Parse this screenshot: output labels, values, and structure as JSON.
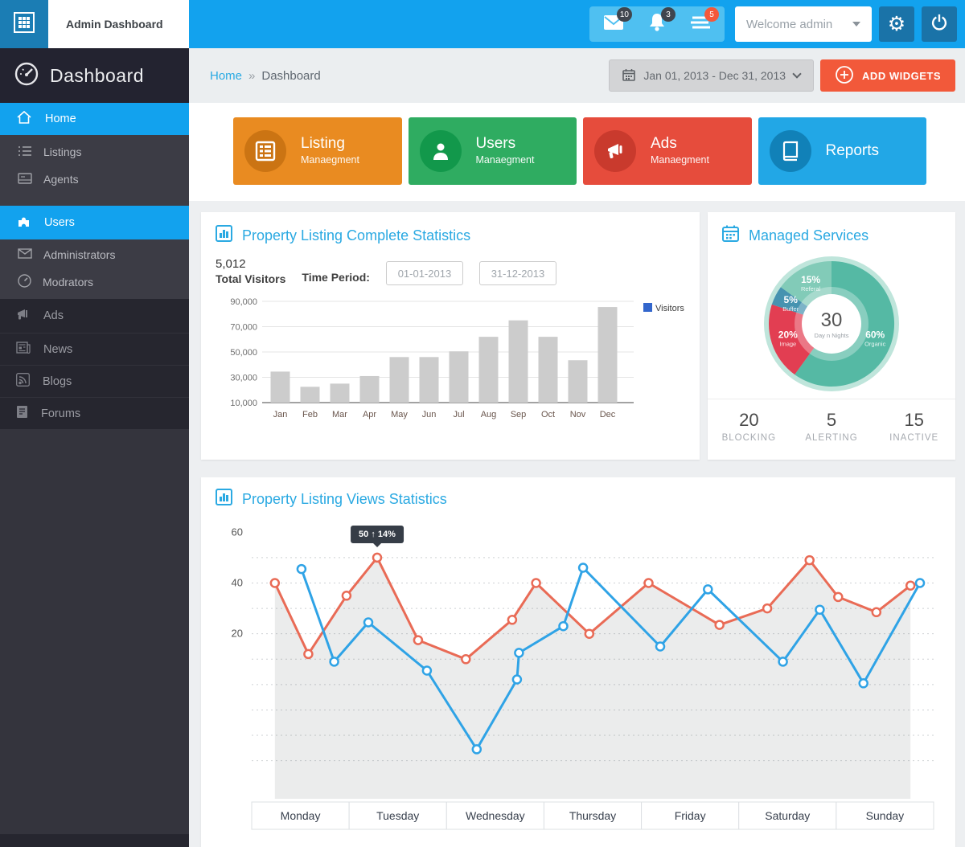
{
  "colors": {
    "accent": "#12a2ee",
    "header_light": "#4fc0f1",
    "header_button": "#1a73a8",
    "sidebar_dark": "#26262f",
    "sidebar_sub": "#3c3c45",
    "panel_title": "#2aa9e2",
    "add_widgets": "#f2593a",
    "badge_dark": "#3f454e",
    "badge_red": "#f4583a"
  },
  "topbar": {
    "app_title": "Admin Dashboard",
    "welcome_label": "Welcome admin",
    "notifications": [
      {
        "icon": "mail-icon",
        "count": "10",
        "badge_color": "#3f454e"
      },
      {
        "icon": "bell-icon",
        "count": "3",
        "badge_color": "#3f454e"
      },
      {
        "icon": "messages-icon",
        "count": "5",
        "badge_color": "#f4583a"
      }
    ]
  },
  "sidebar": {
    "title": "Dashboard",
    "items": [
      {
        "label": "Home"
      },
      {
        "label": "Listings"
      },
      {
        "label": "Agents"
      },
      {
        "label": "Users"
      },
      {
        "label": "Administrators"
      },
      {
        "label": "Modrators"
      },
      {
        "label": "Ads"
      },
      {
        "label": "News"
      },
      {
        "label": "Blogs"
      },
      {
        "label": "Forums"
      }
    ]
  },
  "breadcrumb": {
    "home": "Home",
    "separator": "»",
    "current": "Dashboard"
  },
  "toolbar": {
    "date_range": "Jan 01, 2013 - Dec 31, 2013",
    "add_widgets_label": "ADD WIDGETS"
  },
  "cards": [
    {
      "title": "Listing",
      "subtitle": "Manaegment",
      "bg": "#e98b21",
      "circle": "#cb7413"
    },
    {
      "title": "Users",
      "subtitle": "Manaegment",
      "bg": "#2fac61",
      "circle": "#12984b"
    },
    {
      "title": "Ads",
      "subtitle": "Manaegment",
      "bg": "#e64c3c",
      "circle": "#c93a2d"
    },
    {
      "title": "Reports",
      "subtitle": "",
      "bg": "#22a7e6",
      "circle": "#1181b8"
    }
  ],
  "visitors_panel": {
    "title": "Property Listing Complete Statistics",
    "total_value": "5,012",
    "total_label": "Total Visitors",
    "time_period_label": "Time Period:",
    "date_from": "01-01-2013",
    "date_to": "31-12-2013"
  },
  "services_panel": {
    "title": "Managed Services",
    "stats": [
      {
        "value": "20",
        "label": "BLOCKING"
      },
      {
        "value": "5",
        "label": "ALERTING"
      },
      {
        "value": "15",
        "label": "INACTIVE"
      }
    ]
  },
  "views_panel": {
    "title": "Property Listing Views Statistics",
    "tooltip_value": "50",
    "tooltip_arrow": "↑",
    "tooltip_percent": "14%"
  },
  "chart_data": [
    {
      "type": "bar",
      "title": "Property Listing Complete Statistics",
      "categories": [
        "Jan",
        "Feb",
        "Mar",
        "Apr",
        "May",
        "Jun",
        "Jul",
        "Aug",
        "Sep",
        "Oct",
        "Nov",
        "Dec"
      ],
      "values": [
        34500,
        22500,
        25000,
        31000,
        46000,
        46000,
        50500,
        62000,
        75000,
        62000,
        43500,
        85500
      ],
      "series_name": "Visitors",
      "xlabel": "",
      "ylabel": "",
      "ylim": [
        10000,
        90000
      ],
      "y_ticks": [
        10000,
        30000,
        50000,
        70000,
        90000
      ],
      "y_tick_labels": [
        "10,000",
        "30,000",
        "50,000",
        "70,000",
        "90,000"
      ],
      "bar_color": "#cccccc",
      "legend_color": "#3366cc",
      "legend_position": "right",
      "grid": true
    },
    {
      "type": "pie",
      "title": "Managed Services",
      "donut": true,
      "labels": [
        "Organic",
        "Image",
        "Buffer",
        "Referal"
      ],
      "values": [
        60,
        20,
        5,
        15
      ],
      "percent_labels": [
        "60%",
        "20%",
        "5%",
        "15%"
      ],
      "colors": [
        "#55b9a4",
        "#e23e52",
        "#4693b0",
        "#82cbb8"
      ],
      "halo_color": "#bfe5db",
      "center_value": "30",
      "center_label": "Day n Nights",
      "start_angle_deg": 0,
      "clockwise": true
    },
    {
      "type": "line",
      "title": "Property Listing Views Statistics",
      "categories": [
        "Monday",
        "Tuesday",
        "Wednesday",
        "Thursday",
        "Friday",
        "Saturday",
        "Sunday"
      ],
      "y_ticks": [
        60,
        40,
        20
      ],
      "gridlines": [
        50,
        40,
        30,
        20,
        10,
        0,
        -10,
        -20,
        -30
      ],
      "ylim": [
        -45,
        62
      ],
      "grid_style": "dashed",
      "series": [
        {
          "name": "series-red",
          "color": "#e96b56",
          "area": true,
          "points": [
            {
              "x": 0.034,
              "y": 40
            },
            {
              "x": 0.083,
              "y": 12
            },
            {
              "x": 0.139,
              "y": 35
            },
            {
              "x": 0.184,
              "y": 50
            },
            {
              "x": 0.244,
              "y": 17.5
            },
            {
              "x": 0.314,
              "y": 10
            },
            {
              "x": 0.382,
              "y": 25.5
            },
            {
              "x": 0.417,
              "y": 40
            },
            {
              "x": 0.495,
              "y": 20
            },
            {
              "x": 0.582,
              "y": 40
            },
            {
              "x": 0.686,
              "y": 23.5
            },
            {
              "x": 0.756,
              "y": 30
            },
            {
              "x": 0.818,
              "y": 49
            },
            {
              "x": 0.86,
              "y": 34.5
            },
            {
              "x": 0.916,
              "y": 28.5
            },
            {
              "x": 0.966,
              "y": 39
            }
          ]
        },
        {
          "name": "series-blue",
          "color": "#2fa3e6",
          "area": false,
          "points": [
            {
              "x": 0.073,
              "y": 45.5
            },
            {
              "x": 0.121,
              "y": 9
            },
            {
              "x": 0.171,
              "y": 24.5
            },
            {
              "x": 0.257,
              "y": 5.5
            },
            {
              "x": 0.33,
              "y": -25.5
            },
            {
              "x": 0.389,
              "y": 2
            },
            {
              "x": 0.392,
              "y": 12.5
            },
            {
              "x": 0.457,
              "y": 23
            },
            {
              "x": 0.486,
              "y": 46
            },
            {
              "x": 0.599,
              "y": 15
            },
            {
              "x": 0.669,
              "y": 37.5
            },
            {
              "x": 0.779,
              "y": 9
            },
            {
              "x": 0.833,
              "y": 29.5
            },
            {
              "x": 0.897,
              "y": 0.5
            },
            {
              "x": 0.98,
              "y": 40
            }
          ]
        }
      ],
      "tooltip": {
        "text": "50 ↑ 14%",
        "point_x": 0.184,
        "point_y": 50
      }
    }
  ]
}
